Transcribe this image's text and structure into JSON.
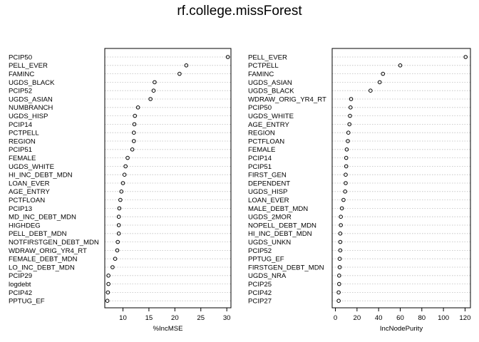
{
  "title": "rf.college.missForest",
  "chart_data": [
    {
      "type": "scatter",
      "xlabel": "%IncMSE",
      "xlim": [
        6.5,
        30.8
      ],
      "xticks": [
        10,
        15,
        20,
        25,
        30
      ],
      "grid": true,
      "labels": [
        "PCIP50",
        "PELL_EVER",
        "FAMINC",
        "UGDS_BLACK",
        "PCIP52",
        "UGDS_ASIAN",
        "NUMBRANCH",
        "UGDS_HISP",
        "PCIP14",
        "PCTPELL",
        "REGION",
        "PCIP51",
        "FEMALE",
        "UGDS_WHITE",
        "HI_INC_DEBT_MDN",
        "LOAN_EVER",
        "AGE_ENTRY",
        "PCTFLOAN",
        "PCIP13",
        "MD_INC_DEBT_MDN",
        "HIGHDEG",
        "PELL_DEBT_MDN",
        "NOTFIRSTGEN_DEBT_MDN",
        "WDRAW_ORIG_YR4_RT",
        "FEMALE_DEBT_MDN",
        "LO_INC_DEBT_MDN",
        "PCIP29",
        "logdebt",
        "PCIP42",
        "PPTUG_EF"
      ],
      "values": [
        30.2,
        22.2,
        20.9,
        16.1,
        15.9,
        15.3,
        12.9,
        12.3,
        12.2,
        12.1,
        12.1,
        11.8,
        10.9,
        10.5,
        10.3,
        10.0,
        9.7,
        9.5,
        9.3,
        9.2,
        9.2,
        9.2,
        9.0,
        8.9,
        8.5,
        8.0,
        7.2,
        7.2,
        7.1,
        7.0
      ]
    },
    {
      "type": "scatter",
      "xlabel": "IncNodePurity",
      "xlim": [
        -3,
        125
      ],
      "xticks": [
        0,
        20,
        40,
        60,
        80,
        100,
        120
      ],
      "grid": true,
      "labels": [
        "PELL_EVER",
        "PCTPELL",
        "FAMINC",
        "UGDS_ASIAN",
        "UGDS_BLACK",
        "WDRAW_ORIG_YR4_RT",
        "PCIP50",
        "UGDS_WHITE",
        "AGE_ENTRY",
        "REGION",
        "PCTFLOAN",
        "FEMALE",
        "PCIP14",
        "PCIP51",
        "FIRST_GEN",
        "DEPENDENT",
        "UGDS_HISP",
        "LOAN_EVER",
        "MALE_DEBT_MDN",
        "UGDS_2MOR",
        "NOPELL_DEBT_MDN",
        "HI_INC_DEBT_MDN",
        "UGDS_UNKN",
        "PCIP52",
        "PPTUG_EF",
        "FIRSTGEN_DEBT_MDN",
        "UGDS_NRA",
        "PCIP25",
        "PCIP42",
        "PCIP27"
      ],
      "values": [
        120.5,
        60.0,
        44.0,
        41.0,
        32.5,
        14.5,
        14.0,
        13.5,
        13.0,
        12.0,
        11.5,
        10.5,
        10.0,
        10.0,
        9.5,
        9.5,
        9.0,
        7.5,
        6.0,
        5.0,
        5.0,
        4.5,
        4.5,
        4.5,
        4.0,
        4.0,
        3.5,
        3.5,
        3.0,
        3.0
      ]
    }
  ]
}
